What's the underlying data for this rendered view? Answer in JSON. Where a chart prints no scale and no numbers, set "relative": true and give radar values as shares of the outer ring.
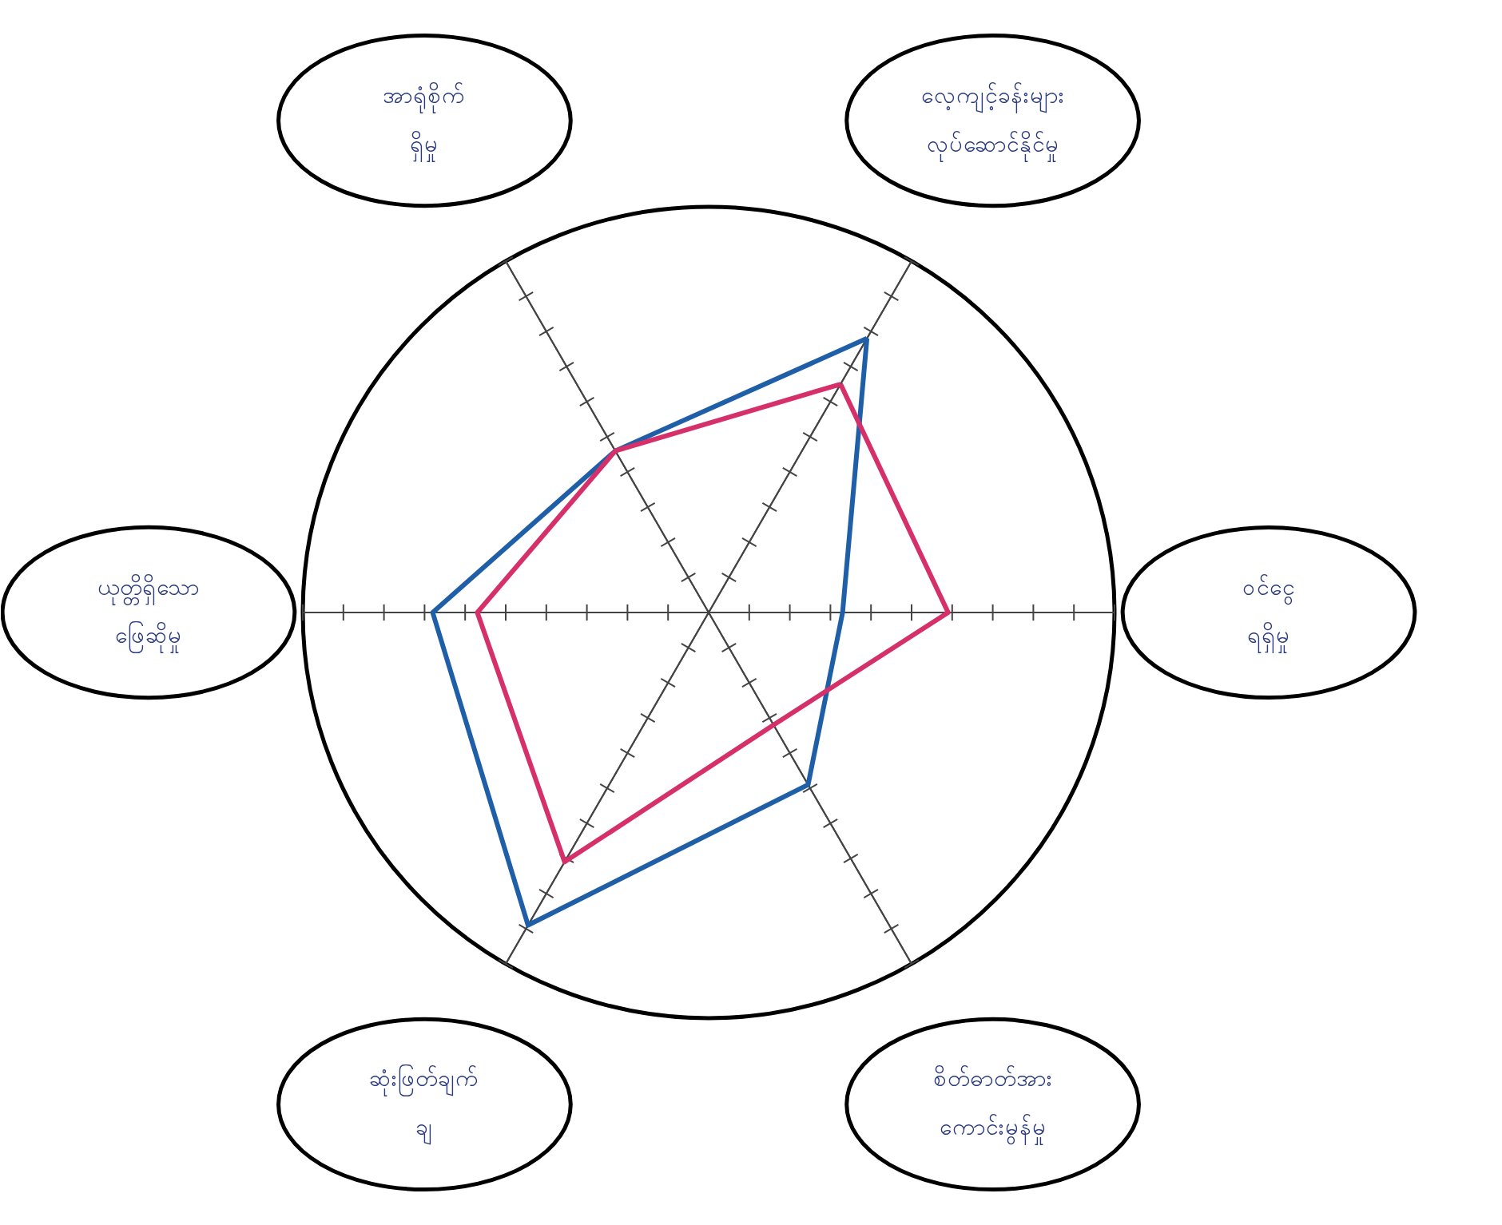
{
  "chart_data": {
    "type": "radar",
    "relative": true,
    "categories": [
      "လေ့ကျင့်ခန်းများ လုပ်ဆောင်နိုင်မှု",
      "ဝင်ငွေ ရရှိမှု",
      "စိတ်ဓာတ်အား ကောင်းမွန်မှု",
      "ဆုံးဖြတ်ချက် ချ",
      "ယုတ္တိရှိသော ဖြေဆိုမှု",
      "အာရုံစိုက် ရှိမှု"
    ],
    "series": [
      {
        "color": "#1f5fa8",
        "values": [
          0.78,
          0.33,
          0.49,
          0.89,
          0.68,
          0.46
        ]
      },
      {
        "color": "#d6306a",
        "values": [
          0.65,
          0.59,
          0.32,
          0.71,
          0.57,
          0.46
        ]
      }
    ]
  }
}
